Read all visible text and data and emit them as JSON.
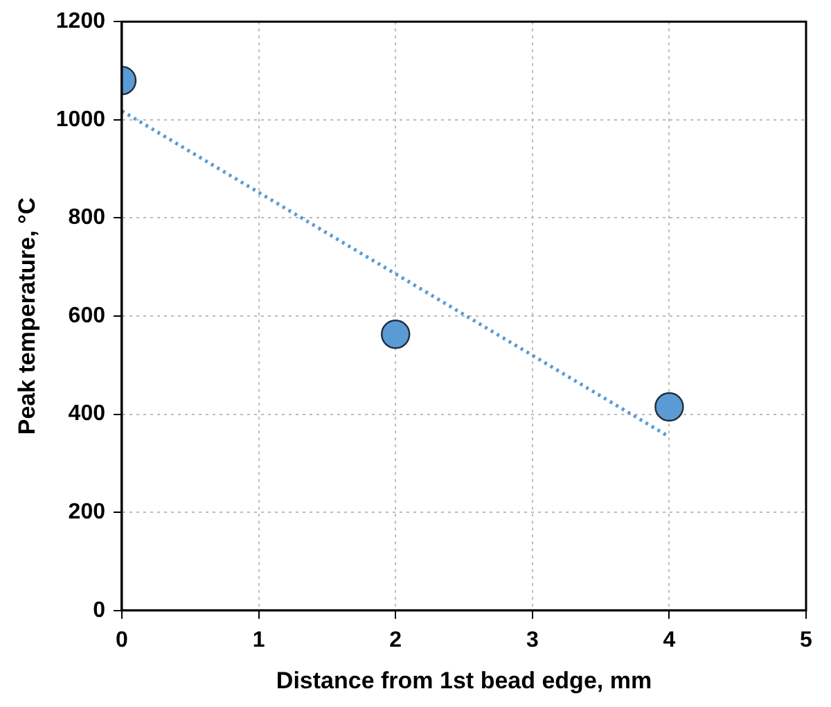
{
  "chart_data": {
    "type": "scatter",
    "xlabel": "Distance from 1st bead edge, mm",
    "ylabel": "Peak temperature, °C",
    "xlim": [
      0,
      5
    ],
    "xticks": [
      0,
      1,
      2,
      3,
      4,
      5
    ],
    "ylim": [
      0,
      1200
    ],
    "yticks": [
      0,
      200,
      400,
      600,
      800,
      1000,
      1200
    ],
    "grid": true,
    "legend": false,
    "marker": "circle",
    "series": [
      {
        "color": "#5b9bd5",
        "x": [
          0,
          2,
          4
        ],
        "values": [
          1080,
          563,
          415
        ]
      },
      {
        "type": "line",
        "color": "#5b9bd5",
        "line_style": "dotted",
        "marker": "none",
        "x": [
          0,
          4
        ],
        "values": [
          1018,
          354
        ]
      }
    ]
  }
}
